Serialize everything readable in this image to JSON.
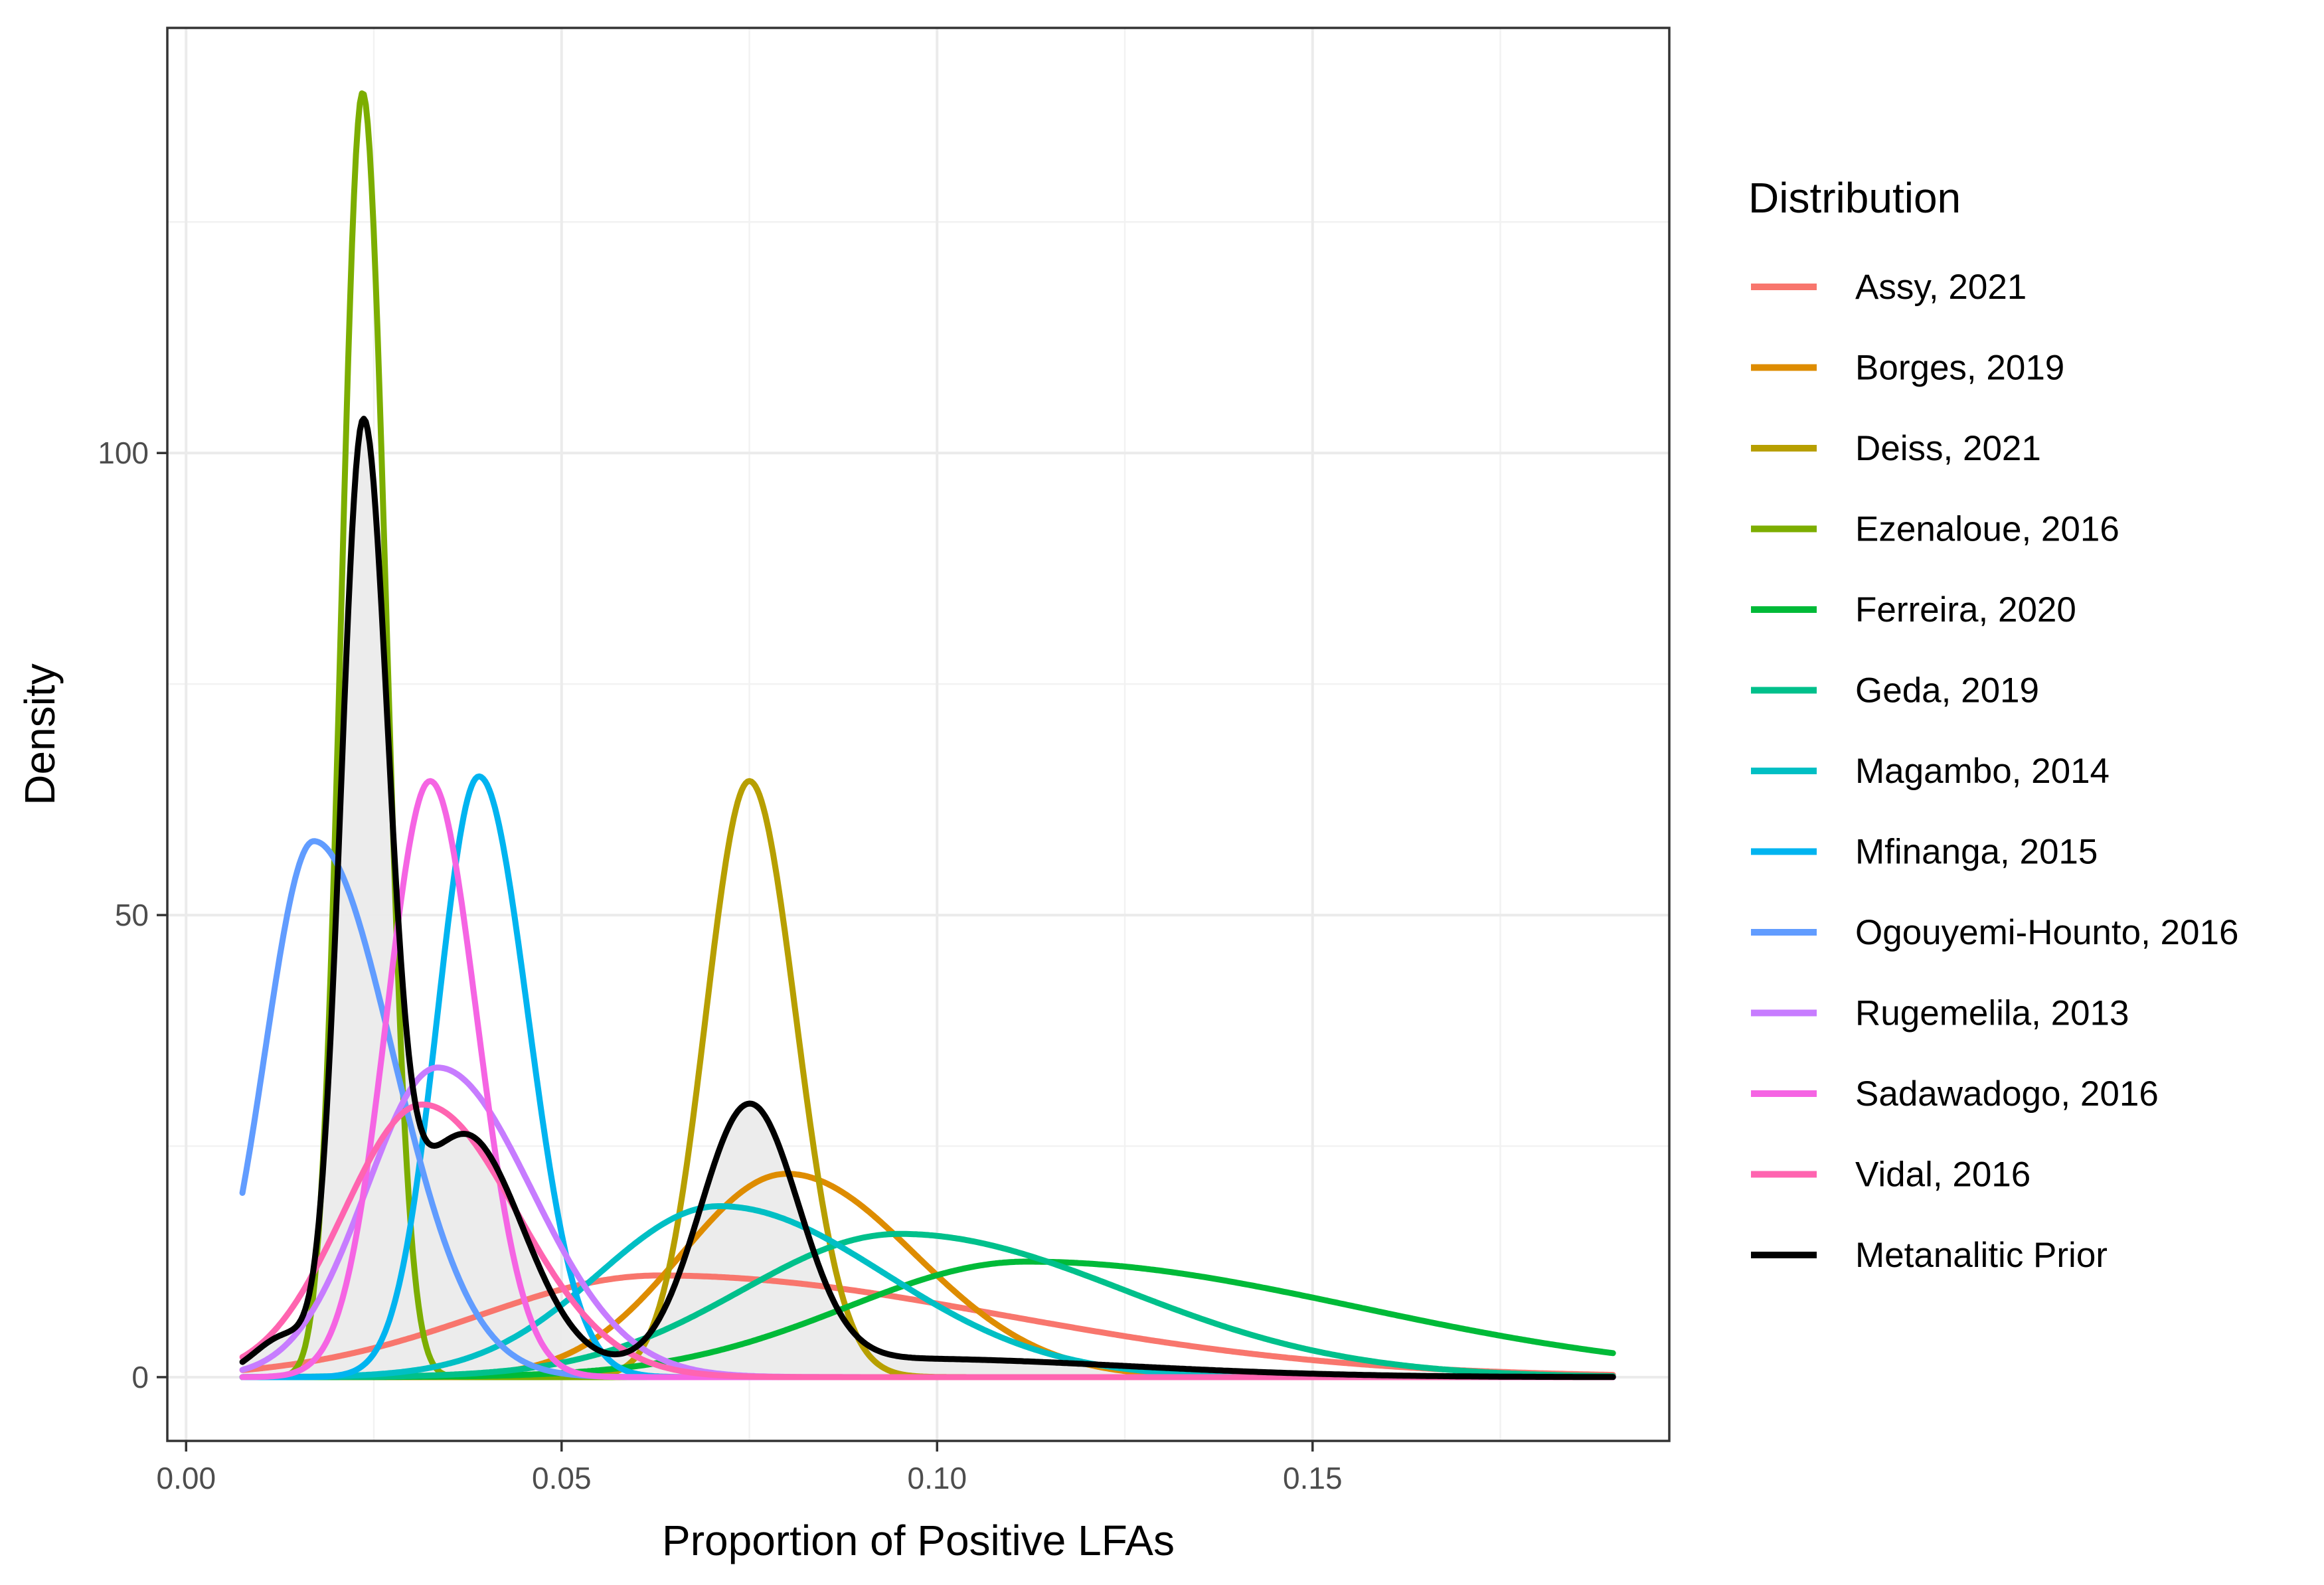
{
  "chart_data": {
    "type": "line",
    "title": "",
    "xlabel": "Proportion of Positive LFAs",
    "ylabel": "Density",
    "xlim": [
      -0.0025,
      0.1975
    ],
    "ylim": [
      -6.9,
      146
    ],
    "x_ticks": [
      0.0,
      0.05,
      0.1,
      0.15
    ],
    "x_tick_labels": [
      "0.00",
      "0.05",
      "0.10",
      "0.15"
    ],
    "y_ticks": [
      0,
      50,
      100
    ],
    "y_tick_labels": [
      "0",
      "50",
      "100"
    ],
    "grid": true,
    "legend_title": "Distribution",
    "legend_position": "right",
    "x_range": [
      0.0075,
      0.19
    ],
    "series": [
      {
        "name": "Assy, 2021",
        "color": "#F8766D",
        "peak_x": 0.063,
        "peak_y": 11,
        "sd_left": 0.024,
        "sd_right": 0.046
      },
      {
        "name": "Borges, 2019",
        "color": "#DE8C00",
        "peak_x": 0.08,
        "peak_y": 22,
        "sd_left": 0.014,
        "sd_right": 0.017
      },
      {
        "name": "Deiss, 2021",
        "color": "#B79F00",
        "peak_x": 0.075,
        "peak_y": 64.5,
        "sd_left": 0.0058,
        "sd_right": 0.0062
      },
      {
        "name": "Ezenaloue, 2016",
        "color": "#7CAE00",
        "peak_x": 0.0235,
        "peak_y": 139,
        "sd_left": 0.0028,
        "sd_right": 0.0031
      },
      {
        "name": "Ferreira, 2020",
        "color": "#00BA38",
        "peak_x": 0.112,
        "peak_y": 12.5,
        "sd_left": 0.024,
        "sd_right": 0.044
      },
      {
        "name": "Geda, 2019",
        "color": "#00C08B",
        "peak_x": 0.095,
        "peak_y": 15.5,
        "sd_left": 0.021,
        "sd_right": 0.03
      },
      {
        "name": "Magambo, 2014",
        "color": "#00BFC4",
        "peak_x": 0.071,
        "peak_y": 18.5,
        "sd_left": 0.016,
        "sd_right": 0.022
      },
      {
        "name": "Mfinanga, 2015",
        "color": "#00B4F0",
        "peak_x": 0.039,
        "peak_y": 65,
        "sd_left": 0.0055,
        "sd_right": 0.0065
      },
      {
        "name": "Ogouyemi-Hounto, 2016",
        "color": "#619CFF",
        "peak_x": 0.017,
        "peak_y": 58,
        "sd_left": 0.0065,
        "sd_right": 0.0105
      },
      {
        "name": "Rugemelila, 2013",
        "color": "#C77CFF",
        "peak_x": 0.0335,
        "peak_y": 33.5,
        "sd_left": 0.0095,
        "sd_right": 0.0125
      },
      {
        "name": "Sadawadogo, 2016",
        "color": "#F564E3",
        "peak_x": 0.0325,
        "peak_y": 64.5,
        "sd_left": 0.0058,
        "sd_right": 0.0062
      },
      {
        "name": "Vidal, 2016",
        "color": "#FF64B0",
        "peak_x": 0.0315,
        "peak_y": 29.5,
        "sd_left": 0.0105,
        "sd_right": 0.0125
      },
      {
        "name": "Metanalitic Prior",
        "color": "#000000",
        "fill": "#ebebeb",
        "components": [
          {
            "mu": 0.0235,
            "peak": 96,
            "sd_left": 0.0029,
            "sd_right": 0.0033
          },
          {
            "mu": 0.037,
            "peak": 26,
            "sd_left": 0.0085,
            "sd_right": 0.0078
          },
          {
            "mu": 0.075,
            "peak": 28,
            "sd_left": 0.0065,
            "sd_right": 0.0065
          },
          {
            "mu": 0.095,
            "peak": 2,
            "sd_left": 0.03,
            "sd_right": 0.03
          },
          {
            "mu": 0.013,
            "peak": 4,
            "sd_left": 0.004,
            "sd_right": 0.004
          }
        ]
      }
    ]
  }
}
